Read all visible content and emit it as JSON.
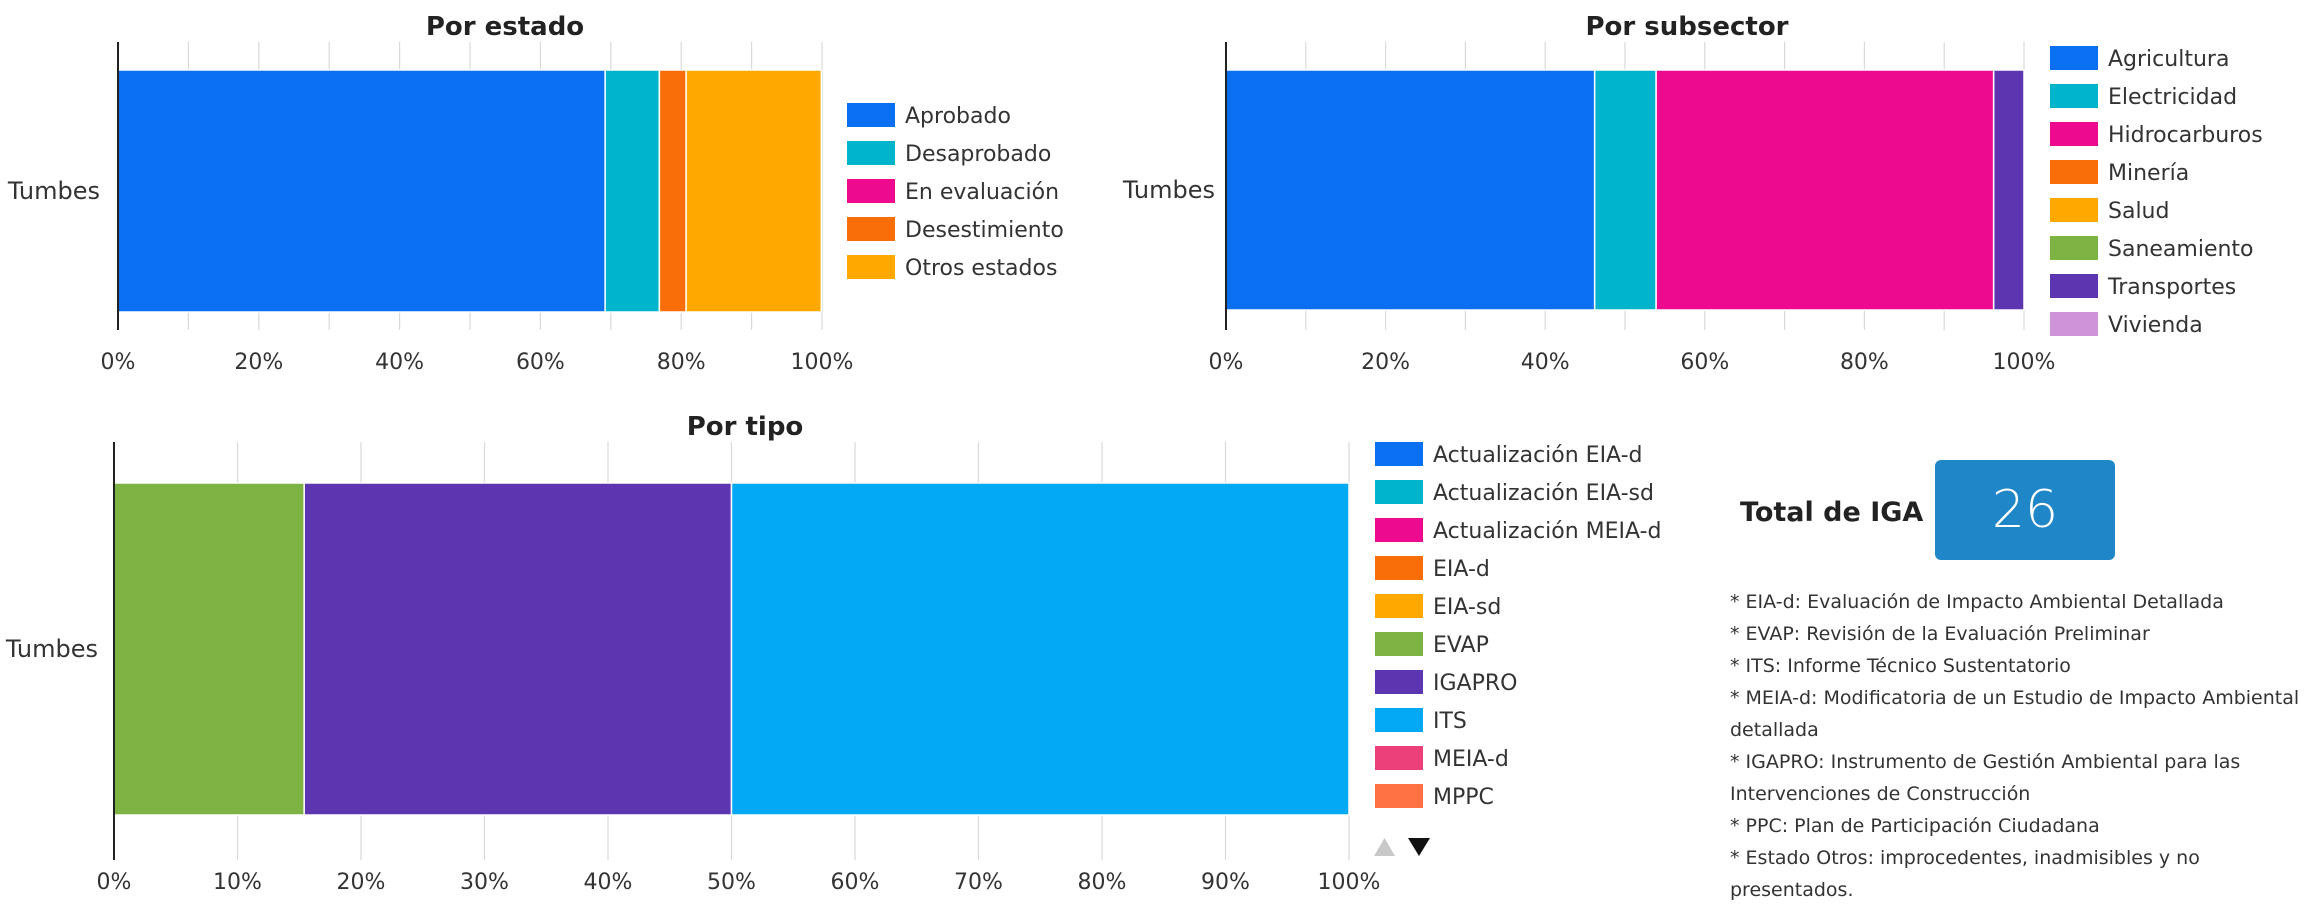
{
  "chart_data": [
    {
      "type": "bar",
      "orientation": "horizontal",
      "stacked": true,
      "normalized": true,
      "title": "Por estado",
      "categories": [
        "Tumbes"
      ],
      "xlim": [
        0,
        100
      ],
      "x_ticks": [
        "0%",
        "20%",
        "40%",
        "60%",
        "80%",
        "100%"
      ],
      "grid": true,
      "legend_position": "right",
      "series": [
        {
          "name": "Aprobado",
          "color": "#0a6ff0",
          "values": [
            69.2
          ]
        },
        {
          "name": "Desaprobado",
          "color": "#00b4cc",
          "values": [
            7.7
          ]
        },
        {
          "name": "En evaluación",
          "color": "#ee0a8f",
          "values": [
            0
          ]
        },
        {
          "name": "Desestimiento",
          "color": "#fa6e0a",
          "values": [
            3.8
          ]
        },
        {
          "name": "Otros estados",
          "color": "#ffa800",
          "values": [
            19.2
          ]
        }
      ]
    },
    {
      "type": "bar",
      "orientation": "horizontal",
      "stacked": true,
      "normalized": true,
      "title": "Por subsector",
      "categories": [
        "Tumbes"
      ],
      "xlim": [
        0,
        100
      ],
      "x_ticks": [
        "0%",
        "20%",
        "40%",
        "60%",
        "80%",
        "100%"
      ],
      "grid": true,
      "legend_position": "right",
      "series": [
        {
          "name": "Agricultura",
          "color": "#0a6ff0",
          "values": [
            46.2
          ]
        },
        {
          "name": "Electricidad",
          "color": "#00b4cc",
          "values": [
            7.7
          ]
        },
        {
          "name": "Hidrocarburos",
          "color": "#ee0a8f",
          "values": [
            42.3
          ]
        },
        {
          "name": "Minería",
          "color": "#fa6e0a",
          "values": [
            0
          ]
        },
        {
          "name": "Salud",
          "color": "#ffa800",
          "values": [
            0
          ]
        },
        {
          "name": "Saneamiento",
          "color": "#7cb342",
          "values": [
            0
          ]
        },
        {
          "name": "Transportes",
          "color": "#5e35b1",
          "values": [
            3.8
          ]
        },
        {
          "name": "Vivienda",
          "color": "#ce93d8",
          "values": [
            0
          ]
        }
      ]
    },
    {
      "type": "bar",
      "orientation": "horizontal",
      "stacked": true,
      "normalized": true,
      "title": "Por tipo",
      "categories": [
        "Tumbes"
      ],
      "xlim": [
        0,
        100
      ],
      "x_ticks": [
        "0%",
        "10%",
        "20%",
        "30%",
        "40%",
        "50%",
        "60%",
        "70%",
        "80%",
        "90%",
        "100%"
      ],
      "grid": true,
      "legend_position": "right",
      "series": [
        {
          "name": "Actualización EIA-d",
          "color": "#0a6ff0",
          "values": [
            0
          ]
        },
        {
          "name": "Actualización EIA-sd",
          "color": "#00b4cc",
          "values": [
            0
          ]
        },
        {
          "name": "Actualización MEIA-d",
          "color": "#ee0a8f",
          "values": [
            0
          ]
        },
        {
          "name": "EIA-d",
          "color": "#fa6e0a",
          "values": [
            0
          ]
        },
        {
          "name": "EIA-sd",
          "color": "#ffa800",
          "values": [
            0
          ]
        },
        {
          "name": "EVAP",
          "color": "#7cb342",
          "values": [
            15.4
          ]
        },
        {
          "name": "IGAPRO",
          "color": "#5e35b1",
          "values": [
            34.6
          ]
        },
        {
          "name": "ITS",
          "color": "#03a9f4",
          "values": [
            50.0
          ]
        },
        {
          "name": "MEIA-d",
          "color": "#ec407a",
          "values": [
            0
          ]
        },
        {
          "name": "MPPC",
          "color": "#ff7043",
          "values": [
            0
          ]
        }
      ]
    }
  ],
  "summary": {
    "total_label": "Total de IGA",
    "total_value": "26"
  },
  "notes": [
    "* EIA-d: Evaluación de Impacto Ambiental Detallada",
    "* EVAP: Revisión de la Evaluación Preliminar",
    "* ITS: Informe Técnico Sustentatorio",
    "* MEIA-d: Modificatoria de un Estudio de Impacto Ambiental detallada",
    "* IGAPRO: Instrumento de Gestión Ambiental para las Intervenciones de Construcción",
    "* PPC: Plan de Participación Ciudadana",
    "* Estado Otros: improcedentes, inadmisibles y no presentados."
  ],
  "legend_pager": {
    "up_icon": "triangle-up-icon",
    "down_icon": "triangle-down-icon"
  }
}
